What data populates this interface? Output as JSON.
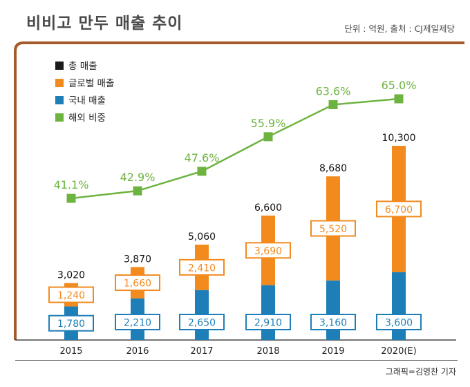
{
  "title": "비비고 만두 매출 추이",
  "unit_note": "단위 : 억원, 출처 : CJ제일제당",
  "credit": "그래픽=김영찬 기자",
  "colors": {
    "frame": "#a55a2c",
    "total": "#1a1a1a",
    "global": "#f28a1e",
    "domestic": "#1e7fb8",
    "overseas": "#6db33f"
  },
  "chart_data": {
    "type": "bar",
    "categories": [
      "2015",
      "2016",
      "2017",
      "2018",
      "2019",
      "2020(E)"
    ],
    "series": [
      {
        "name": "국내 매출",
        "values": [
          1780,
          2210,
          2650,
          2910,
          3160,
          3600
        ],
        "labels": [
          "1,780",
          "2,210",
          "2,650",
          "2,910",
          "3,160",
          "3,600"
        ]
      },
      {
        "name": "글로벌 매출",
        "values": [
          1240,
          1660,
          2410,
          3690,
          5520,
          6700
        ],
        "labels": [
          "1,240",
          "1,660",
          "2,410",
          "3,690",
          "5,520",
          "6,700"
        ]
      },
      {
        "name": "총 매출",
        "values": [
          3020,
          3870,
          5060,
          6600,
          8680,
          10300
        ],
        "labels": [
          "3,020",
          "3,870",
          "5,060",
          "6,600",
          "8,680",
          "10,300"
        ]
      },
      {
        "name": "해외 비중",
        "values": [
          41.1,
          42.9,
          47.6,
          55.9,
          63.6,
          65.0
        ],
        "labels": [
          "41.1%",
          "42.9%",
          "47.6%",
          "55.9%",
          "63.6%",
          "65.0%"
        ]
      }
    ],
    "legend": [
      "총 매출",
      "글로벌 매출",
      "국내 매출",
      "해외 비중"
    ],
    "legend_position": "top-left",
    "bar_scale": [
      0,
      10300
    ],
    "line_scale": [
      41.1,
      65.0
    ]
  }
}
